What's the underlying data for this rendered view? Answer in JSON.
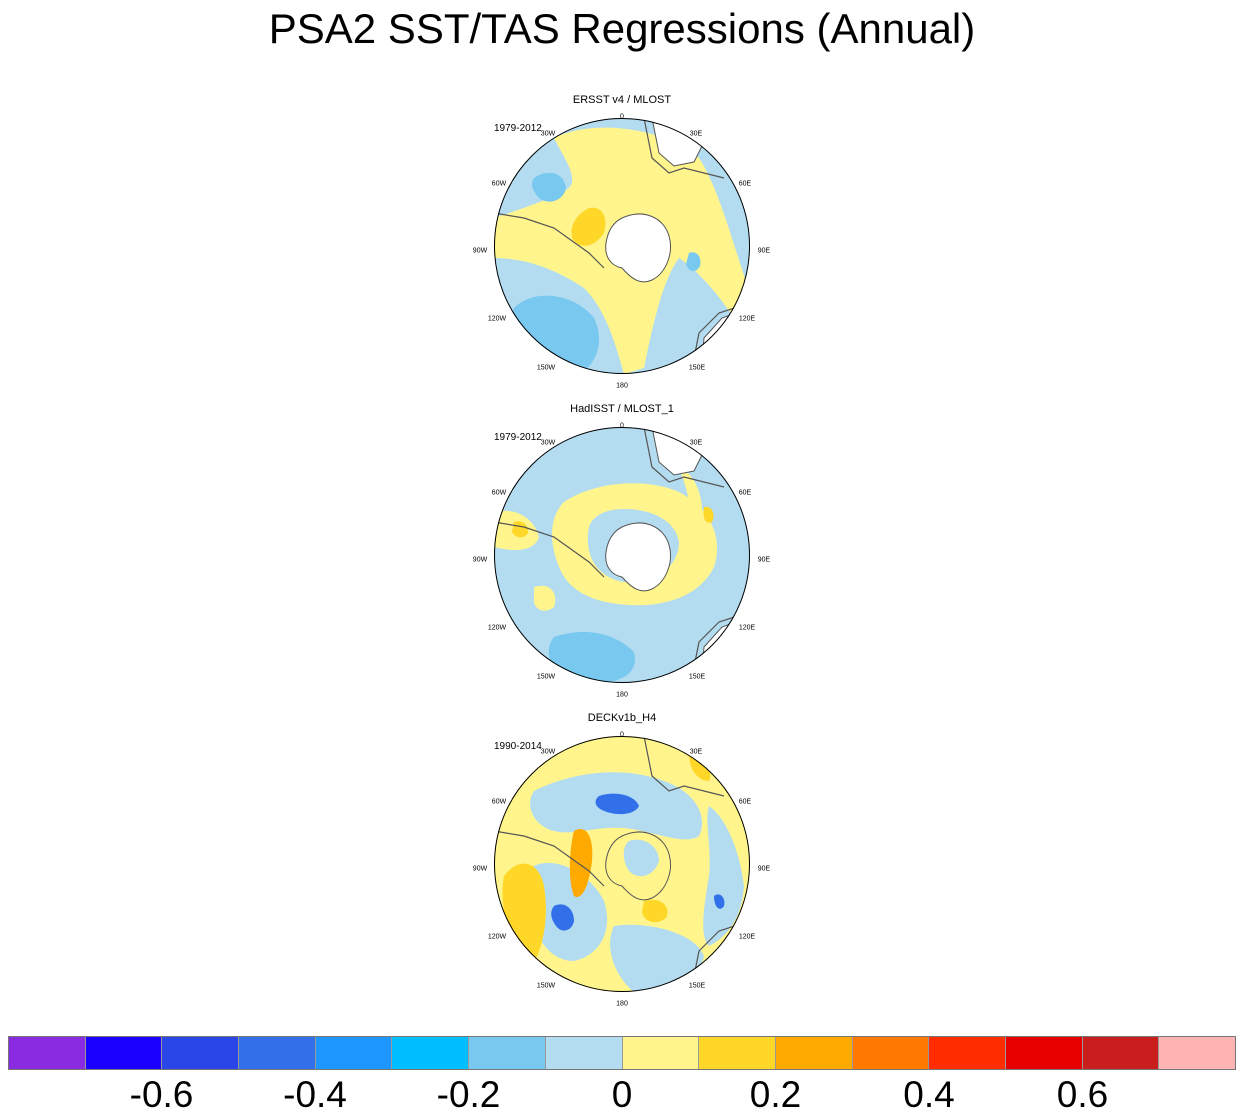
{
  "title": "PSA2 SST/TAS Regressions (Annual)",
  "lon_labels": {
    "l0": "0",
    "l30e": "30E",
    "l60e": "60E",
    "l90e": "90E",
    "l120e": "120E",
    "l150e": "150E",
    "l180": "180",
    "l150w": "150W",
    "l120w": "120W",
    "l90w": "90W",
    "l60w": "60W",
    "l30w": "30W"
  },
  "panels": [
    {
      "title": "ERSST v4 / MLOST",
      "period": "1979-2012"
    },
    {
      "title": "HadISST / MLOST_1",
      "period": "1979-2012"
    },
    {
      "title": "DECKv1b_H4",
      "period": "1990-2014"
    }
  ],
  "colors": {
    "palette": [
      "#8a2be2",
      "#1a00ff",
      "#2a46e8",
      "#3170e8",
      "#1e96ff",
      "#00bfff",
      "#78c8f0",
      "#b4dcf0",
      "#fff58c",
      "#ffd728",
      "#ffaa00",
      "#ff7800",
      "#ff2d00",
      "#e60000",
      "#c81e1e",
      "#ffb4b4"
    ],
    "land": "#ffffff",
    "coast": "#555555"
  },
  "colorbar": {
    "labels": [
      "-0.6",
      "-0.4",
      "-0.2",
      "0",
      "0.2",
      "0.4",
      "0.6"
    ],
    "label_values": [
      -0.6,
      -0.4,
      -0.2,
      0,
      0.2,
      0.4,
      0.6
    ]
  }
}
